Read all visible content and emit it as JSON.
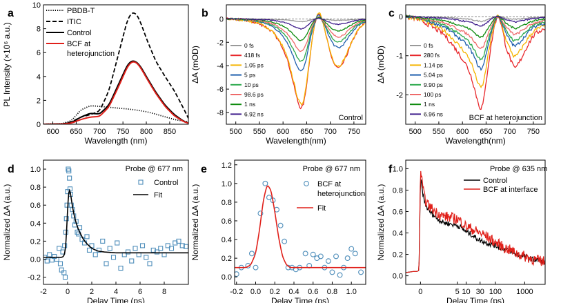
{
  "colors": {
    "black": "#000000",
    "red": "#e0201a",
    "blue": "#4d8dba",
    "gray": "#999999",
    "ps": [
      "#999999",
      "#e8262a",
      "#f5b400",
      "#1f5fae",
      "#2aa84a",
      "#ee6a6a",
      "#0c8a0c",
      "#3f1d8c"
    ]
  },
  "chart_data": [
    {
      "id": "a",
      "type": "line",
      "panel_label": "a",
      "xlabel": "Wavelength (nm)",
      "ylabel": "PL Intensity (×10⁶ a.u.)",
      "xlim": [
        580,
        890
      ],
      "ylim": [
        0,
        10
      ],
      "xticks": [
        600,
        650,
        700,
        750,
        800,
        850
      ],
      "yticks": [
        0,
        2,
        4,
        6,
        8,
        10
      ],
      "xtick_labels": [
        "600",
        "650",
        "700",
        "750",
        "800",
        "850"
      ],
      "ytick_labels": [
        "0",
        "2",
        "4",
        "6",
        "8",
        "10"
      ],
      "legend_position": "top-left",
      "series": [
        {
          "name": "PBDB-T",
          "style": "dotted",
          "color": "black",
          "x": [
            580,
            620,
            640,
            660,
            680,
            700,
            720,
            740,
            760,
            780,
            800,
            820,
            840,
            860,
            880,
            890
          ],
          "y": [
            0.02,
            0.05,
            0.3,
            1.2,
            1.55,
            1.5,
            1.42,
            1.35,
            1.28,
            1.18,
            1.05,
            0.85,
            0.62,
            0.4,
            0.25,
            0.2
          ]
        },
        {
          "name": "ITIC",
          "style": "dashed",
          "color": "black",
          "x": [
            580,
            620,
            640,
            660,
            680,
            700,
            720,
            740,
            760,
            770,
            780,
            790,
            800,
            820,
            840,
            860,
            880,
            890
          ],
          "y": [
            0,
            0.02,
            0.2,
            0.6,
            0.8,
            1.1,
            2.8,
            5.8,
            8.8,
            9.4,
            9.2,
            8.3,
            7.2,
            5.3,
            4.0,
            2.8,
            1.3,
            0.5
          ]
        },
        {
          "name": "Control",
          "style": "solid",
          "color": "black",
          "x": [
            580,
            620,
            640,
            660,
            680,
            700,
            720,
            740,
            760,
            770,
            780,
            790,
            800,
            820,
            840,
            860,
            880,
            890
          ],
          "y": [
            0,
            0.02,
            0.15,
            0.6,
            0.92,
            0.85,
            1.6,
            3.3,
            5.0,
            5.35,
            5.2,
            4.7,
            4.0,
            2.7,
            1.6,
            0.8,
            0.25,
            0.1
          ]
        },
        {
          "name": "BCF at heterojunction",
          "style": "solid",
          "color": "red",
          "x": [
            580,
            620,
            640,
            660,
            680,
            700,
            720,
            740,
            760,
            770,
            780,
            790,
            800,
            820,
            840,
            860,
            880,
            890
          ],
          "y": [
            0,
            0.02,
            0.1,
            0.4,
            0.6,
            0.65,
            1.45,
            3.1,
            4.85,
            5.28,
            5.15,
            4.6,
            3.9,
            2.6,
            1.5,
            0.7,
            0.22,
            0.08
          ]
        }
      ]
    },
    {
      "id": "b",
      "type": "line",
      "panel_label": "b",
      "xlabel": "Wavelength(nm)",
      "ylabel": "ΔA (mOD)",
      "xlim": [
        480,
        775
      ],
      "ylim": [
        -9,
        1.2
      ],
      "xticks": [
        500,
        550,
        600,
        650,
        700,
        750
      ],
      "yticks": [
        -8,
        -6,
        -4,
        -2,
        0
      ],
      "xtick_labels": [
        "500",
        "550",
        "600",
        "650",
        "700",
        "750"
      ],
      "ytick_labels": [
        "-8",
        "-6",
        "-4",
        "-2",
        "0"
      ],
      "annotation": "Control",
      "legend_position": "bottom-left",
      "x": [
        480,
        500,
        520,
        540,
        560,
        580,
        600,
        610,
        620,
        630,
        638,
        645,
        652,
        660,
        668,
        676,
        684,
        692,
        700,
        710,
        720,
        730,
        740,
        750,
        760,
        775
      ],
      "base": [
        0,
        -0.05,
        -0.1,
        -0.3,
        -0.6,
        -1.2,
        -2.5,
        -3.6,
        -5.2,
        -7.0,
        -7.9,
        -7.2,
        -5.0,
        -2.2,
        -0.2,
        0.8,
        -0.3,
        -1.6,
        -3.0,
        -4.1,
        -4.3,
        -3.6,
        -2.6,
        -1.6,
        -0.9,
        -0.3
      ],
      "series": [
        {
          "name": "0 fs",
          "scale": 0.03
        },
        {
          "name": "418 fs",
          "scale": 0.99
        },
        {
          "name": "1.05 ps",
          "scale": 0.95
        },
        {
          "name": "5 ps",
          "scale": 0.58
        },
        {
          "name": "10 ps",
          "scale": 0.47
        },
        {
          "name": "98.6 ps",
          "scale": 0.36
        },
        {
          "name": "1 ns",
          "scale": 0.24
        },
        {
          "name": "6.92 ns",
          "scale": 0.11
        }
      ]
    },
    {
      "id": "c",
      "type": "line",
      "panel_label": "c",
      "xlabel": "Wavelength(nm)",
      "ylabel": "ΔA (mOD)",
      "xlim": [
        480,
        775
      ],
      "ylim": [
        -2.75,
        0.3
      ],
      "xticks": [
        500,
        550,
        600,
        650,
        700,
        750
      ],
      "yticks": [
        -2,
        -1,
        0
      ],
      "xtick_labels": [
        "500",
        "550",
        "600",
        "650",
        "700",
        "750"
      ],
      "ytick_labels": [
        "-2",
        "-1",
        "0"
      ],
      "annotation": "BCF at heterojunction",
      "legend_position": "bottom-left",
      "x": [
        480,
        500,
        520,
        540,
        560,
        580,
        600,
        610,
        620,
        630,
        638,
        645,
        652,
        660,
        668,
        676,
        684,
        692,
        700,
        710,
        720,
        730,
        740,
        750,
        760,
        775
      ],
      "base": [
        0,
        -0.05,
        -0.15,
        -0.3,
        -0.45,
        -0.75,
        -1.1,
        -1.3,
        -1.6,
        -2.1,
        -2.45,
        -2.25,
        -1.5,
        -0.8,
        -0.2,
        0.1,
        -0.3,
        -0.8,
        -1.05,
        -1.4,
        -1.2,
        -0.95,
        -0.7,
        -0.5,
        -0.4,
        -0.3
      ],
      "series": [
        {
          "name": "0 fs",
          "scale": 0.05
        },
        {
          "name": "280 fs",
          "scale": 0.98
        },
        {
          "name": "1.14 ps",
          "scale": 0.76
        },
        {
          "name": "5.04 ps",
          "scale": 0.56
        },
        {
          "name": "9.90 ps",
          "scale": 0.46
        },
        {
          "name": "100 ps",
          "scale": 0.34
        },
        {
          "name": "1 ns",
          "scale": 0.22
        },
        {
          "name": "6.96 ns",
          "scale": 0.1
        }
      ]
    },
    {
      "id": "d",
      "type": "scatter",
      "panel_label": "d",
      "xlabel": "Delay Time (ps)",
      "ylabel": "Normalized ΔA (a.u.)",
      "xlim": [
        -2,
        10
      ],
      "ylim": [
        -0.28,
        1.1
      ],
      "xticks": [
        -2,
        0,
        2,
        4,
        6,
        8
      ],
      "yticks": [
        -0.2,
        0.0,
        0.2,
        0.4,
        0.6,
        0.8,
        1.0
      ],
      "xtick_labels": [
        "-2",
        "0",
        "2",
        "4",
        "6",
        "8"
      ],
      "ytick_labels": [
        "-0.2",
        "0.0",
        "0.2",
        "0.4",
        "0.6",
        "0.8",
        "1.0"
      ],
      "annotation": "Probe @ 677 nm",
      "legend_position": "top-right",
      "series": [
        {
          "name": "Control",
          "kind": "markers",
          "marker": "square",
          "color": "blue",
          "x": [
            -1.9,
            -1.7,
            -1.5,
            -1.3,
            -1.1,
            -0.9,
            -0.7,
            -0.6,
            -0.5,
            -0.4,
            -0.3,
            -0.25,
            -0.2,
            -0.15,
            -0.1,
            -0.05,
            0,
            0.05,
            0.1,
            0.15,
            0.2,
            0.25,
            0.3,
            0.4,
            0.5,
            0.6,
            0.7,
            0.8,
            0.9,
            1.0,
            1.2,
            1.4,
            1.6,
            1.8,
            2.0,
            2.3,
            2.6,
            2.9,
            3.2,
            3.5,
            3.8,
            4.1,
            4.4,
            4.7,
            5.0,
            5.3,
            5.6,
            5.9,
            6.2,
            6.5,
            6.8,
            7.1,
            7.4,
            7.7,
            8.0,
            8.3,
            8.6,
            8.9,
            9.2,
            9.5,
            9.8
          ],
          "y": [
            0.02,
            -0.02,
            0.05,
            -0.01,
            0.03,
            0.0,
            0.12,
            -0.05,
            -0.12,
            0.08,
            -0.15,
            0.15,
            -0.2,
            0.3,
            0.45,
            0.6,
            0.75,
            1.0,
            0.98,
            0.9,
            0.78,
            0.72,
            0.6,
            0.55,
            0.48,
            0.38,
            0.42,
            0.3,
            0.28,
            0.35,
            0.22,
            0.18,
            0.25,
            0.1,
            0.15,
            0.05,
            0.1,
            0.2,
            -0.05,
            0.12,
            0.02,
            0.18,
            -0.1,
            0.05,
            0.08,
            -0.02,
            0.12,
            0.05,
            0.15,
            0.02,
            -0.05,
            0.1,
            0.08,
            0.12,
            0.05,
            0.15,
            0.12,
            0.18,
            0.2,
            0.15,
            0.14
          ]
        },
        {
          "name": "Fit",
          "kind": "line",
          "color": "black",
          "x": [
            -2,
            -1,
            -0.5,
            -0.3,
            -0.15,
            -0.05,
            0.05,
            0.15,
            0.25,
            0.4,
            0.6,
            0.8,
            1.0,
            1.3,
            1.6,
            2.0,
            2.5,
            3,
            4,
            5,
            6,
            7,
            8,
            9,
            10
          ],
          "y": [
            0.02,
            0.02,
            0.02,
            0.03,
            0.1,
            0.4,
            0.75,
            0.82,
            0.72,
            0.58,
            0.45,
            0.36,
            0.3,
            0.22,
            0.17,
            0.12,
            0.09,
            0.08,
            0.07,
            0.07,
            0.07,
            0.07,
            0.07,
            0.07,
            0.07
          ]
        }
      ]
    },
    {
      "id": "e",
      "type": "scatter",
      "panel_label": "e",
      "xlabel": "Delay Time (ps)",
      "ylabel": "Normalized ΔA (a.u.)",
      "xlim": [
        -0.22,
        1.15
      ],
      "ylim": [
        -0.08,
        1.25
      ],
      "xticks": [
        -0.2,
        0.0,
        0.2,
        0.4,
        0.6,
        0.8,
        1.0
      ],
      "yticks": [
        0.0,
        0.2,
        0.4,
        0.6,
        0.8,
        1.0,
        1.2
      ],
      "xtick_labels": [
        "-0.2",
        "0.0",
        "0.2",
        "0.4",
        "0.6",
        "0.8",
        "1.0"
      ],
      "ytick_labels": [
        "0.0",
        "0.2",
        "0.4",
        "0.6",
        "0.8",
        "1.0",
        "1.2"
      ],
      "annotation": "Probe @ 677 nm",
      "legend_position": "top-right",
      "series": [
        {
          "name": "BCF at heterojunction",
          "kind": "markers",
          "marker": "circle",
          "color": "blue",
          "x": [
            -0.2,
            -0.15,
            -0.08,
            -0.04,
            0.0,
            0.05,
            0.1,
            0.14,
            0.18,
            0.22,
            0.26,
            0.3,
            0.34,
            0.38,
            0.42,
            0.46,
            0.52,
            0.56,
            0.6,
            0.64,
            0.68,
            0.72,
            0.76,
            0.8,
            0.84,
            0.88,
            0.92,
            0.96,
            1.0,
            1.04,
            1.1
          ],
          "y": [
            0.03,
            0.1,
            0.12,
            0.25,
            0.1,
            0.68,
            1.0,
            0.85,
            0.82,
            0.72,
            0.55,
            0.38,
            0.1,
            0.1,
            0.08,
            0.1,
            0.25,
            0.12,
            0.24,
            0.2,
            0.22,
            0.1,
            0.17,
            0.05,
            0.22,
            0.02,
            0.1,
            0.2,
            0.3,
            0.25,
            0.05
          ]
        },
        {
          "name": "Fit",
          "kind": "line",
          "color": "red",
          "x": [
            -0.22,
            -0.1,
            -0.05,
            0.0,
            0.04,
            0.08,
            0.12,
            0.16,
            0.2,
            0.24,
            0.28,
            0.32,
            0.36,
            0.4,
            0.5,
            0.7,
            0.9,
            1.15
          ],
          "y": [
            0.1,
            0.1,
            0.13,
            0.25,
            0.5,
            0.82,
            0.99,
            0.93,
            0.7,
            0.42,
            0.22,
            0.13,
            0.1,
            0.1,
            0.1,
            0.1,
            0.1,
            0.1
          ]
        }
      ]
    },
    {
      "id": "f",
      "type": "line",
      "panel_label": "f",
      "xlabel": "Delay Time (ps)",
      "ylabel": "Normalized ΔA (a.u.)",
      "x_scale": "linear below 5 ps, logarithmic above",
      "xlim": [
        -2,
        5000
      ],
      "ylim": [
        -0.08,
        1.08
      ],
      "xticks": [
        0,
        5,
        10,
        30,
        100,
        1000
      ],
      "xtick_labels": [
        "0",
        "5",
        "10",
        "30",
        "100",
        "1000"
      ],
      "yticks": [
        0.0,
        0.2,
        0.4,
        0.6,
        0.8,
        1.0
      ],
      "ytick_labels": [
        "0.0",
        "0.2",
        "0.4",
        "0.6",
        "0.8",
        "1.0"
      ],
      "annotation": "Probe @ 635 nm",
      "legend_position": "top-right",
      "series": [
        {
          "name": "Control",
          "color": "black",
          "noise": 0.012,
          "x": [
            -2,
            -1,
            -0.5,
            -0.2,
            0,
            0.2,
            0.5,
            1,
            2,
            3,
            5,
            10,
            20,
            30,
            60,
            100,
            200,
            500,
            1000,
            2000,
            5000
          ],
          "y": [
            0.03,
            0.04,
            0.04,
            0.05,
            0.92,
            0.82,
            0.7,
            0.62,
            0.55,
            0.5,
            0.47,
            0.41,
            0.36,
            0.33,
            0.3,
            0.28,
            0.25,
            0.2,
            0.18,
            0.15,
            0.13
          ]
        },
        {
          "name": "BCF at interface",
          "color": "red",
          "noise": 0.025,
          "x": [
            -2,
            -1,
            -0.5,
            -0.2,
            0,
            0.2,
            0.5,
            1,
            2,
            3,
            5,
            10,
            20,
            30,
            60,
            100,
            200,
            500,
            1000,
            2000,
            5000
          ],
          "y": [
            0.03,
            0.04,
            0.04,
            0.05,
            1.0,
            0.88,
            0.74,
            0.66,
            0.6,
            0.56,
            0.53,
            0.46,
            0.42,
            0.4,
            0.35,
            0.31,
            0.26,
            0.21,
            0.18,
            0.15,
            0.13
          ]
        }
      ]
    }
  ]
}
